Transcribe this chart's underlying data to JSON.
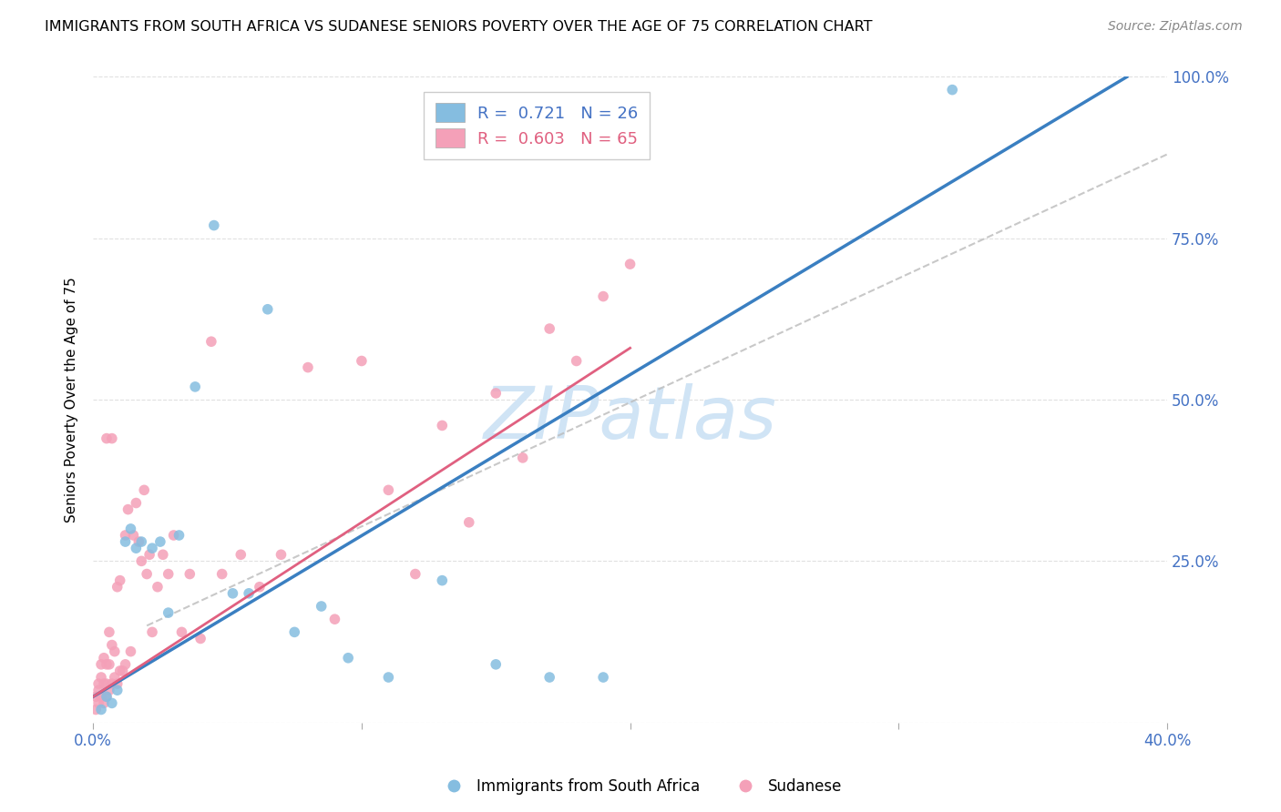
{
  "title": "IMMIGRANTS FROM SOUTH AFRICA VS SUDANESE SENIORS POVERTY OVER THE AGE OF 75 CORRELATION CHART",
  "source": "Source: ZipAtlas.com",
  "ylabel": "Seniors Poverty Over the Age of 75",
  "legend_labels": [
    "Immigrants from South Africa",
    "Sudanese"
  ],
  "blue_R": 0.721,
  "blue_N": 26,
  "pink_R": 0.603,
  "pink_N": 65,
  "blue_color": "#85bde0",
  "pink_color": "#f4a0b8",
  "blue_line_color": "#3a7fc1",
  "pink_line_color": "#e06080",
  "watermark": "ZIPatlas",
  "watermark_color": "#d0e4f5",
  "xlim": [
    0.0,
    0.4
  ],
  "ylim": [
    0.0,
    1.0
  ],
  "background_color": "#ffffff",
  "grid_color": "#cccccc",
  "blue_line_x": [
    0.0,
    0.385
  ],
  "blue_line_y": [
    0.04,
    1.0
  ],
  "pink_line_x": [
    0.0,
    0.2
  ],
  "pink_line_y": [
    0.04,
    0.58
  ],
  "diag_line_x": [
    0.02,
    0.4
  ],
  "diag_line_y": [
    0.15,
    0.88
  ],
  "blue_scatter_x": [
    0.003,
    0.005,
    0.007,
    0.009,
    0.012,
    0.014,
    0.016,
    0.018,
    0.022,
    0.025,
    0.028,
    0.032,
    0.038,
    0.045,
    0.052,
    0.058,
    0.065,
    0.075,
    0.085,
    0.095,
    0.11,
    0.13,
    0.15,
    0.17,
    0.19,
    0.32
  ],
  "blue_scatter_y": [
    0.02,
    0.04,
    0.03,
    0.05,
    0.28,
    0.3,
    0.27,
    0.28,
    0.27,
    0.28,
    0.17,
    0.29,
    0.52,
    0.77,
    0.2,
    0.2,
    0.64,
    0.14,
    0.18,
    0.1,
    0.07,
    0.22,
    0.09,
    0.07,
    0.07,
    0.98
  ],
  "pink_scatter_x": [
    0.001,
    0.001,
    0.002,
    0.002,
    0.002,
    0.003,
    0.003,
    0.003,
    0.004,
    0.004,
    0.004,
    0.005,
    0.005,
    0.005,
    0.005,
    0.006,
    0.006,
    0.006,
    0.007,
    0.007,
    0.007,
    0.008,
    0.008,
    0.009,
    0.009,
    0.01,
    0.01,
    0.011,
    0.012,
    0.012,
    0.013,
    0.014,
    0.015,
    0.016,
    0.017,
    0.018,
    0.019,
    0.02,
    0.021,
    0.022,
    0.024,
    0.026,
    0.028,
    0.03,
    0.033,
    0.036,
    0.04,
    0.044,
    0.048,
    0.055,
    0.062,
    0.07,
    0.08,
    0.09,
    0.1,
    0.11,
    0.12,
    0.13,
    0.14,
    0.15,
    0.16,
    0.17,
    0.18,
    0.19,
    0.2
  ],
  "pink_scatter_y": [
    0.02,
    0.04,
    0.03,
    0.05,
    0.06,
    0.04,
    0.07,
    0.09,
    0.03,
    0.06,
    0.1,
    0.04,
    0.06,
    0.09,
    0.44,
    0.05,
    0.09,
    0.14,
    0.06,
    0.12,
    0.44,
    0.07,
    0.11,
    0.06,
    0.21,
    0.08,
    0.22,
    0.08,
    0.09,
    0.29,
    0.33,
    0.11,
    0.29,
    0.34,
    0.28,
    0.25,
    0.36,
    0.23,
    0.26,
    0.14,
    0.21,
    0.26,
    0.23,
    0.29,
    0.14,
    0.23,
    0.13,
    0.59,
    0.23,
    0.26,
    0.21,
    0.26,
    0.55,
    0.16,
    0.56,
    0.36,
    0.23,
    0.46,
    0.31,
    0.51,
    0.41,
    0.61,
    0.56,
    0.66,
    0.71
  ]
}
